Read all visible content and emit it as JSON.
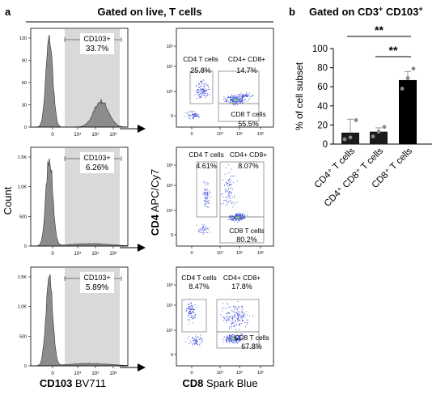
{
  "panel_a": {
    "letter": "a",
    "header": "Gated on live, T cells",
    "hist_ylabel": "Count",
    "hist_xlabel_bold": "CD103",
    "hist_xlabel_rest": " BV711",
    "dot_ylabel_bold": "CD4",
    "dot_ylabel_rest": " APC/Cy7",
    "dot_xlabel_bold": "CD8",
    "dot_xlabel_rest": " Spark Blue",
    "x_ticks": [
      "0",
      "10⁴",
      "10⁵",
      "10⁶"
    ],
    "dot_y_ticks": [
      "10⁶",
      "10⁵",
      "10⁴",
      "0"
    ],
    "histograms": [
      {
        "y_ticks": [
          "120",
          "90",
          "60",
          "30",
          "0"
        ],
        "gate_label": "CD103+",
        "gate_value": "33.7%"
      },
      {
        "y_ticks": [
          "1.5K",
          "1.0K",
          "500",
          "0"
        ],
        "gate_label": "CD103+",
        "gate_value": "6.26%"
      },
      {
        "y_ticks": [
          "1.5K",
          "1.0K",
          "500",
          "0"
        ],
        "gate_label": "CD103+",
        "gate_value": "5.89%"
      }
    ],
    "dotplots": [
      {
        "cd4_label": "CD4 T cells",
        "cd4_value": "25.8%",
        "dp_label": "CD4+ CD8+",
        "dp_value": "14.7%",
        "cd8_label": "CD8 T cells",
        "cd8_value": "55.5%"
      },
      {
        "cd4_label": "CD4 T cells",
        "cd4_value": "4.61%",
        "dp_label": "CD4+ CD8+",
        "dp_value": "8.07%",
        "cd8_label": "CD8 T cells",
        "cd8_value": "80.2%"
      },
      {
        "cd4_label": "CD4 T cells",
        "cd4_value": "8.47%",
        "dp_label": "CD4+ CD8+",
        "dp_value": "17.8%",
        "cd8_label": "CD8 T cells",
        "cd8_value": "67.8%"
      }
    ]
  },
  "chart_data": {
    "type": "bar",
    "letter": "b",
    "title": "Gated on CD3",
    "title_sup": "+",
    "title_mid": " CD103",
    "title_sup2": "+",
    "ylabel": "% of cell subset",
    "ylim": [
      0,
      100
    ],
    "yticks": [
      0,
      20,
      40,
      60,
      80,
      100
    ],
    "categories": [
      "CD4⁺ T cells",
      "CD4⁺ CD8⁺ T cells",
      "CD8⁺ T cells"
    ],
    "values": [
      12,
      13,
      67
    ],
    "errors": [
      14,
      4,
      9
    ],
    "points": [
      [
        5,
        7,
        25
      ],
      [
        8,
        13,
        18
      ],
      [
        58,
        69,
        79
      ]
    ],
    "colors": [
      "#1a1a1a",
      "#1a1a1a",
      "#000000"
    ],
    "significance": [
      {
        "from": 0,
        "to": 2,
        "label": "**"
      },
      {
        "from": 1,
        "to": 2,
        "label": "**"
      }
    ]
  },
  "colors": {
    "gate_fill": "#d9d9d9",
    "hist_fill": "#8c8c8c",
    "dot_blue": "#2d3fd6",
    "dot_cyan": "#21c4c4",
    "dot_yellow": "#e8e020",
    "point_grey": "#8a8a8a"
  }
}
